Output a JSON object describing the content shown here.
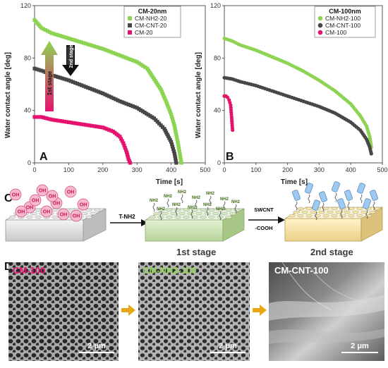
{
  "colors": {
    "nh2": "#8ed454",
    "cnt": "#474747",
    "bare": "#e5136f",
    "stage_arrow_top": "#8ed454",
    "stage_arrow_bottom": "#e5136f",
    "sem_arrow": "#e8a813"
  },
  "panels": {
    "a": "A",
    "b": "B",
    "c": "C",
    "d": "D"
  },
  "stage_arrows": {
    "first": "1st stage",
    "second": "2nd stage"
  },
  "chart_data": [
    {
      "type": "scatter",
      "panel": "A",
      "legend_title": "CM-20nm",
      "legend_position": "top-right",
      "xlabel": "Time [s]",
      "ylabel": "Water contact angle [deg]",
      "xlim": [
        0,
        500
      ],
      "ylim": [
        0,
        120
      ],
      "xticks": [
        0,
        100,
        200,
        300,
        400,
        500
      ],
      "yticks": [
        0,
        40,
        80,
        120
      ],
      "series": [
        {
          "name": "CM-NH2-20",
          "color": "#8ed454",
          "marker": "square",
          "x": [
            0,
            20,
            50,
            100,
            150,
            200,
            250,
            300,
            330,
            350,
            370,
            385,
            400,
            410,
            420,
            430
          ],
          "y": [
            109,
            103,
            99,
            95,
            91,
            87,
            82,
            77,
            72,
            64,
            56,
            47,
            37,
            28,
            15,
            0
          ]
        },
        {
          "name": "CM-CNT-20",
          "color": "#474747",
          "marker": "square",
          "x": [
            0,
            25,
            50,
            100,
            150,
            200,
            250,
            300,
            350,
            380,
            400,
            410,
            415
          ],
          "y": [
            72,
            70,
            67,
            63,
            58,
            53,
            47,
            42,
            34,
            26,
            16,
            7,
            0
          ]
        },
        {
          "name": "CM-20",
          "color": "#e5136f",
          "marker": "square",
          "x": [
            0,
            20,
            50,
            100,
            150,
            200,
            230,
            250,
            260,
            270,
            275,
            280
          ],
          "y": [
            35,
            35,
            33,
            31,
            29,
            27,
            24,
            20,
            15,
            8,
            3,
            0
          ]
        }
      ]
    },
    {
      "type": "scatter",
      "panel": "B",
      "legend_title": "CM-100nm",
      "legend_position": "top-right",
      "xlabel": "Time [s]",
      "ylabel": "Water contact angle [deg]",
      "xlim": [
        0,
        500
      ],
      "ylim": [
        0,
        120
      ],
      "xticks": [
        0,
        100,
        200,
        300,
        400,
        500
      ],
      "yticks": [
        0,
        40,
        80,
        120
      ],
      "series": [
        {
          "name": "CM-NH2-100",
          "color": "#8ed454",
          "marker": "circle",
          "x": [
            0,
            25,
            50,
            100,
            150,
            200,
            250,
            300,
            350,
            400,
            430,
            450,
            460,
            465
          ],
          "y": [
            95,
            93,
            90,
            86,
            81,
            76,
            70,
            63,
            55,
            45,
            36,
            28,
            20,
            12
          ]
        },
        {
          "name": "CM-CNT-100",
          "color": "#474747",
          "marker": "circle",
          "x": [
            0,
            25,
            50,
            100,
            150,
            200,
            250,
            300,
            350,
            400,
            430,
            450,
            460,
            465
          ],
          "y": [
            65,
            64,
            62,
            59,
            55,
            51,
            47,
            43,
            38,
            31,
            25,
            18,
            12,
            7
          ]
        },
        {
          "name": "CM-100",
          "color": "#e5136f",
          "marker": "circle",
          "x": [
            0,
            5,
            10,
            15,
            20,
            23,
            26
          ],
          "y": [
            51,
            51,
            50,
            48,
            44,
            35,
            25
          ]
        }
      ]
    }
  ],
  "scheme": {
    "oh_label": "OH",
    "nh2_label": "NH2",
    "step1_reagent": "T-NH2",
    "step2_reagent_line1": "SWCNT",
    "step2_reagent_line2": "-COOH",
    "stage1": "1st stage",
    "stage2": "2nd stage"
  },
  "sem": {
    "labels": [
      "CM-100",
      "CM-NH2-100",
      "CM-CNT-100"
    ],
    "scale_bar": "2 μm"
  }
}
